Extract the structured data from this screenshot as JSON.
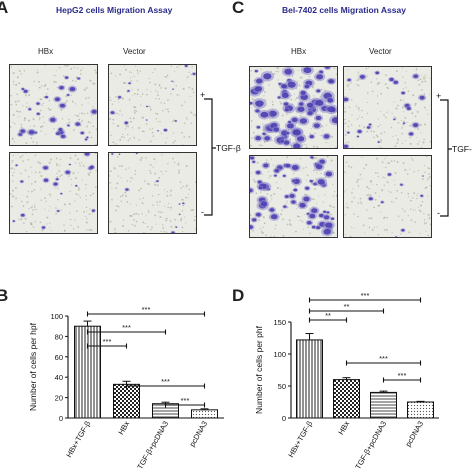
{
  "panels": {
    "A": {
      "letter": "A",
      "title": "HepG2 cells Migration Assay",
      "columns": [
        "HBx",
        "Vector"
      ],
      "plus": "+",
      "minus": "-",
      "treatment": "TGF-β"
    },
    "C": {
      "letter": "C",
      "title": "Bel-7402 cells Migration Assay",
      "columns": [
        "HBx",
        "Vector"
      ],
      "plus": "+",
      "minus": "-",
      "treatment": "TGF-"
    },
    "B": {
      "letter": "B"
    },
    "D": {
      "letter": "D"
    }
  },
  "colors": {
    "stain": "#4b3fb0",
    "stain_light": "#8f86cc",
    "field": "#e9ebe4",
    "ink": "#111111"
  },
  "chart_data": [
    {
      "type": "bar",
      "panel": "B",
      "ylabel": "Number of cells per hpf",
      "categories": [
        "HBx+TGF-β",
        "HBx",
        "TGF-β+pcDNA3",
        "pcDNA3"
      ],
      "values": [
        90,
        33,
        14,
        8
      ],
      "errors": [
        5,
        3,
        1.5,
        1
      ],
      "ylim": [
        0,
        100
      ],
      "yticks": [
        0,
        20,
        40,
        60,
        80,
        100
      ],
      "patterns": [
        "vertical",
        "check",
        "horizontal",
        "dots"
      ],
      "significance": [
        {
          "from": 0,
          "to": 3,
          "label": "***"
        },
        {
          "from": 0,
          "to": 2,
          "label": "***"
        },
        {
          "from": 0,
          "to": 1,
          "label": "***"
        },
        {
          "from": 1,
          "to": 3,
          "label": "***"
        },
        {
          "from": 2,
          "to": 3,
          "label": "***"
        }
      ]
    },
    {
      "type": "bar",
      "panel": "D",
      "ylabel": "Number of cells per phf",
      "categories": [
        "HBx+TGF-β",
        "HBx",
        "TGF-β+pcDNA3",
        "pcDNA3"
      ],
      "values": [
        122,
        60,
        40,
        25
      ],
      "errors": [
        10,
        3,
        2,
        1
      ],
      "ylim": [
        0,
        150
      ],
      "yticks": [
        0,
        50,
        100,
        150
      ],
      "patterns": [
        "vertical",
        "check",
        "horizontal",
        "dots"
      ],
      "significance": [
        {
          "from": 0,
          "to": 3,
          "label": "***"
        },
        {
          "from": 0,
          "to": 2,
          "label": "**"
        },
        {
          "from": 0,
          "to": 1,
          "label": "**"
        },
        {
          "from": 1,
          "to": 3,
          "label": "***"
        },
        {
          "from": 2,
          "to": 3,
          "label": "***"
        }
      ]
    }
  ]
}
